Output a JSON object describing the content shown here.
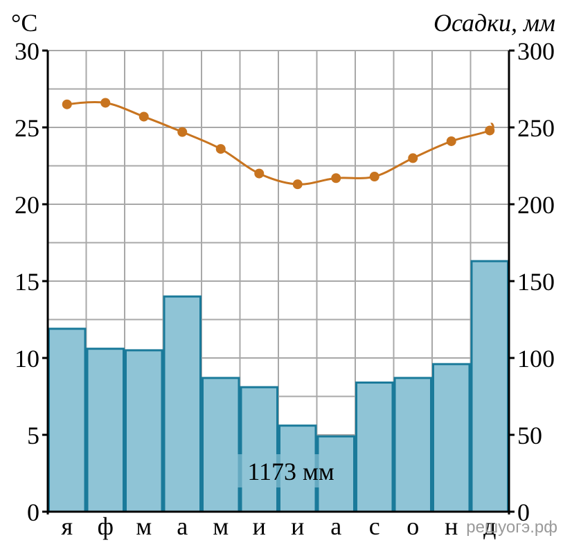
{
  "chart_data": {
    "type": "climate-diagram",
    "categories": [
      "я",
      "ф",
      "м",
      "а",
      "м",
      "и",
      "и",
      "а",
      "с",
      "о",
      "н",
      "д"
    ],
    "temperature": {
      "unit_label": "°C",
      "values": [
        26.5,
        26.6,
        25.7,
        24.7,
        23.6,
        22.0,
        21.3,
        21.7,
        21.8,
        23.0,
        24.1,
        24.8
      ],
      "ylim": [
        0,
        30
      ],
      "ticks": [
        "0",
        "5",
        "10",
        "15",
        "20",
        "25",
        "30"
      ],
      "color": "#c8741f"
    },
    "precipitation": {
      "unit_label": "Осадки, мм",
      "values": [
        119,
        106,
        105,
        140,
        87,
        81,
        56,
        49,
        84,
        87,
        96,
        163
      ],
      "ylim": [
        0,
        300
      ],
      "ticks": [
        "0",
        "50",
        "100",
        "150",
        "200",
        "250",
        "300"
      ],
      "fill_color": "#8fc4d6",
      "stroke_color": "#1a7a9a"
    },
    "total_label": "1173 мм",
    "grid": true
  },
  "watermark": "решуогэ.рф"
}
